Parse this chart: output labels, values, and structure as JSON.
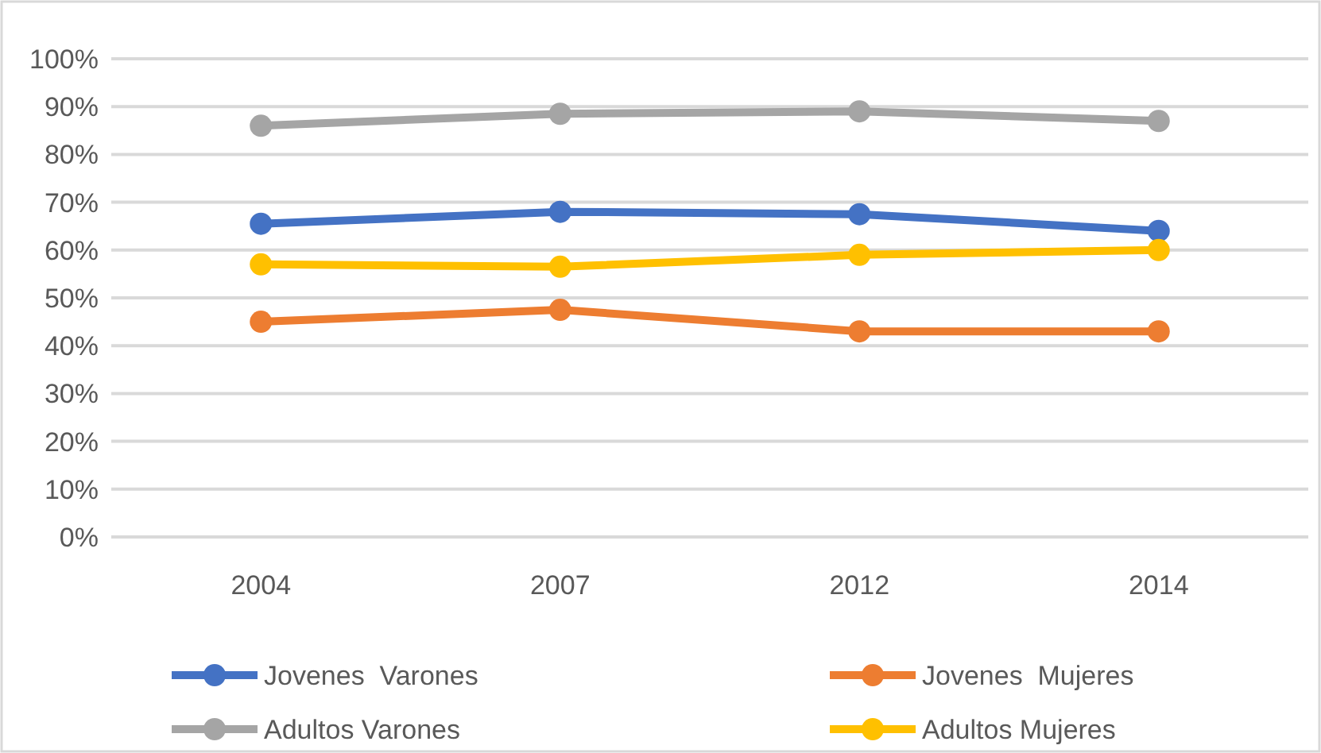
{
  "chart_data": {
    "type": "line",
    "categories": [
      "2004",
      "2007",
      "2012",
      "2014"
    ],
    "series": [
      {
        "name": "Jovenes  Varones",
        "color": "#4472c4",
        "values": [
          65.5,
          68,
          67.5,
          64
        ]
      },
      {
        "name": "Jovenes  Mujeres",
        "color": "#ed7d31",
        "values": [
          45,
          47.5,
          43,
          43
        ]
      },
      {
        "name": "Adultos Varones",
        "color": "#a5a5a5",
        "values": [
          86,
          88.5,
          89,
          87
        ]
      },
      {
        "name": "Adultos Mujeres",
        "color": "#ffc000",
        "values": [
          57,
          56.5,
          59,
          60
        ]
      }
    ],
    "ylim": [
      0,
      100
    ],
    "yticks": [
      {
        "value": 0,
        "label": "0%"
      },
      {
        "value": 10,
        "label": "10%"
      },
      {
        "value": 20,
        "label": "20%"
      },
      {
        "value": 30,
        "label": "30%"
      },
      {
        "value": 40,
        "label": "40%"
      },
      {
        "value": 50,
        "label": "50%"
      },
      {
        "value": 60,
        "label": "60%"
      },
      {
        "value": 70,
        "label": "70%"
      },
      {
        "value": 80,
        "label": "80%"
      },
      {
        "value": 90,
        "label": "90%"
      },
      {
        "value": 100,
        "label": "100%"
      }
    ],
    "grid": "y",
    "legend": "bottom",
    "marker": "circle",
    "line_style": "solid"
  }
}
